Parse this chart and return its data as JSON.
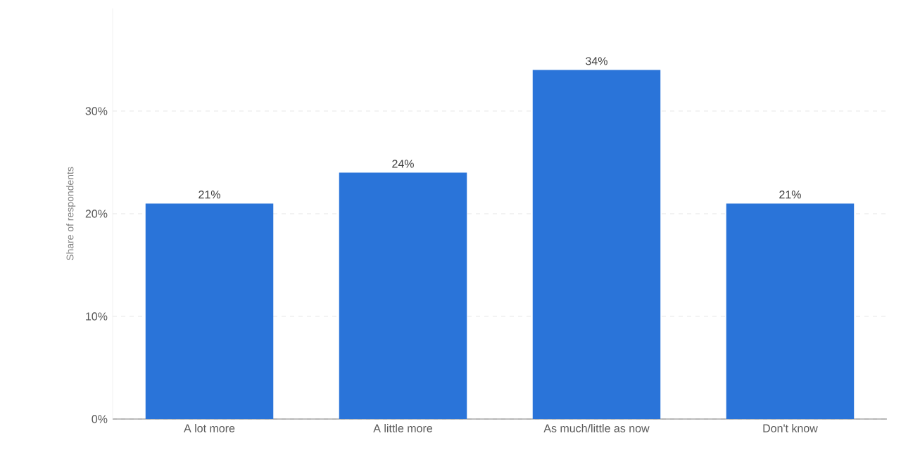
{
  "chart_data": {
    "type": "bar",
    "ylabel": "Share of respondents",
    "categories": [
      "A lot more",
      "A little more",
      "As much/little as now",
      "Don't know"
    ],
    "values": [
      21,
      24,
      34,
      21
    ],
    "value_labels": [
      "21%",
      "24%",
      "34%",
      "21%"
    ],
    "color": "#2a74d9",
    "ylim": [
      0,
      40
    ],
    "yticks": [
      {
        "value": 0,
        "label": "0%"
      },
      {
        "value": 10,
        "label": "10%"
      },
      {
        "value": 20,
        "label": "20%"
      },
      {
        "value": 30,
        "label": "30%"
      }
    ],
    "grid": "y"
  }
}
